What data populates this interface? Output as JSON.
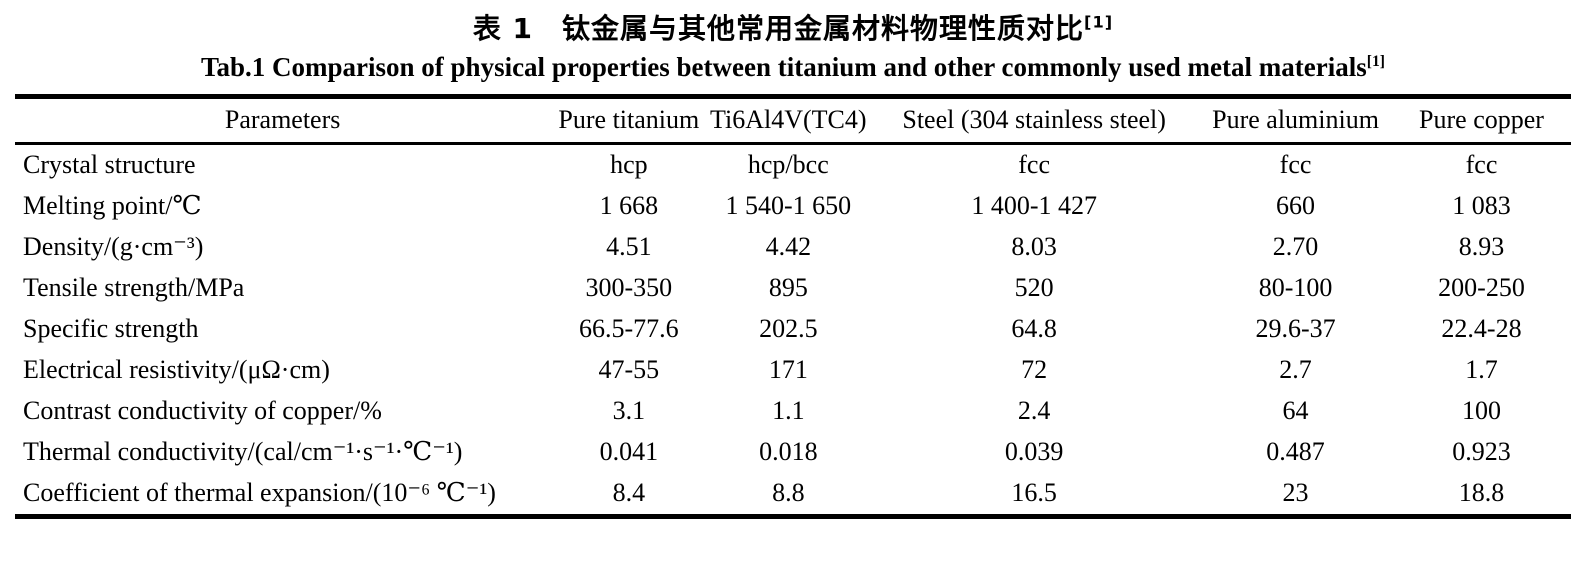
{
  "header": {
    "title_zh": "表 1　钛金属与其他常用金属材料物理性质对比",
    "title_zh_ref": "[1]",
    "title_en": "Tab.1 Comparison of physical properties between titanium and other commonly used metal materials",
    "title_en_ref": "[1]"
  },
  "table": {
    "columns": [
      "Parameters",
      "Pure titanium",
      "Ti6Al4V(TC4)",
      "Steel (304 stainless steel)",
      "Pure aluminium",
      "Pure copper"
    ],
    "rows": [
      {
        "param": "Crystal structure",
        "values": [
          "hcp",
          "hcp/bcc",
          "fcc",
          "fcc",
          "fcc"
        ]
      },
      {
        "param": "Melting point/℃",
        "values": [
          "1 668",
          "1 540-1 650",
          "1 400-1 427",
          "660",
          "1 083"
        ]
      },
      {
        "param": "Density/(g·cm⁻³)",
        "values": [
          "4.51",
          "4.42",
          "8.03",
          "2.70",
          "8.93"
        ]
      },
      {
        "param": "Tensile strength/MPa",
        "values": [
          "300-350",
          "895",
          "520",
          "80-100",
          "200-250"
        ]
      },
      {
        "param": "Specific strength",
        "values": [
          "66.5-77.6",
          "202.5",
          "64.8",
          "29.6-37",
          "22.4-28"
        ]
      },
      {
        "param": "Electrical resistivity/(μΩ·cm)",
        "values": [
          "47-55",
          "171",
          "72",
          "2.7",
          "1.7"
        ]
      },
      {
        "param": "Contrast conductivity of copper/%",
        "values": [
          "3.1",
          "1.1",
          "2.4",
          "64",
          "100"
        ]
      },
      {
        "param": "Thermal conductivity/(cal/cm⁻¹·s⁻¹·℃⁻¹)",
        "values": [
          "0.041",
          "0.018",
          "0.039",
          "0.487",
          "0.923"
        ]
      },
      {
        "param": "Coefficient of thermal expansion/(10⁻⁶ ℃⁻¹)",
        "values": [
          "8.4",
          "8.8",
          "16.5",
          "23",
          "18.8"
        ]
      }
    ]
  }
}
